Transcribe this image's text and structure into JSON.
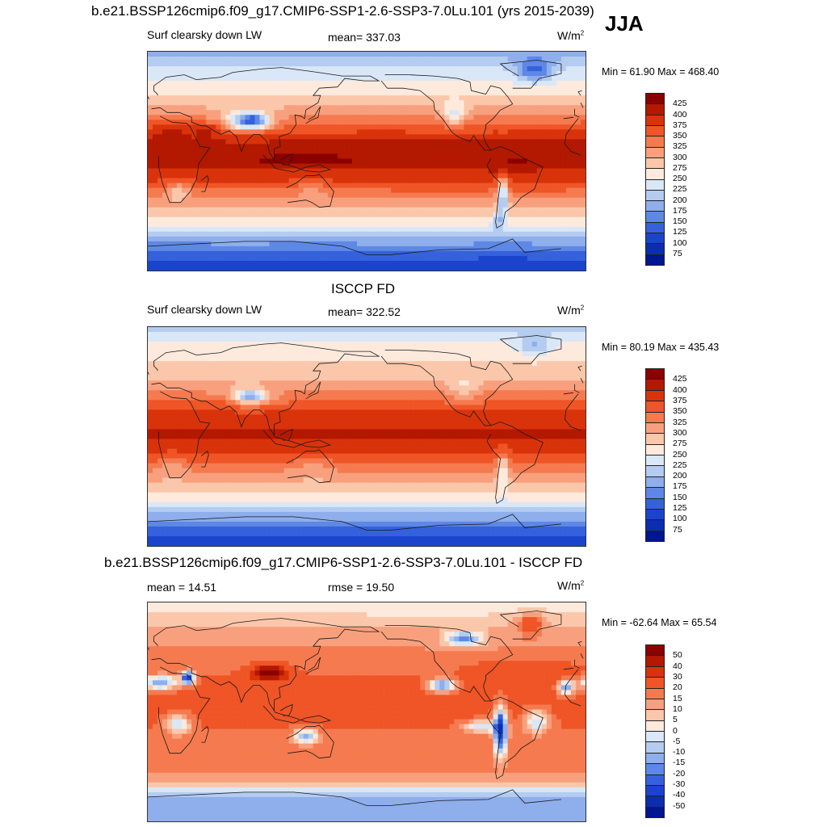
{
  "figure": {
    "season": "JJA",
    "panels": [
      {
        "id": "model",
        "title": "b.e21.BSSP126cmip6.f09_g17.CMIP6-SSP1-2.6-SSP3-7.0Lu.101 (yrs 2015-2039)",
        "left_label": "Surf clearsky down LW",
        "center_label": "mean= 337.03",
        "units_base": "W/m",
        "units_exp": "2",
        "minmax": "Min =  61.90 Max = 468.40",
        "colorbar": {
          "colors": [
            "#8b0000",
            "#b31800",
            "#d9330b",
            "#ef5526",
            "#f57a4f",
            "#f8a07d",
            "#fbc7aa",
            "#feeadd",
            "#d9e7f7",
            "#b4ccf0",
            "#8eaeec",
            "#5d88e6",
            "#3561dc",
            "#1a44cc",
            "#0b2db0",
            "#001590"
          ],
          "labels": [
            "425",
            "400",
            "375",
            "350",
            "325",
            "300",
            "275",
            "250",
            "225",
            "200",
            "175",
            "150",
            "125",
            "100",
            "75"
          ]
        },
        "field": {
          "lat_profile": [
            [
              90,
              185
            ],
            [
              75,
              230
            ],
            [
              60,
              265
            ],
            [
              45,
              300
            ],
            [
              30,
              355
            ],
            [
              15,
              405
            ],
            [
              0,
              420
            ],
            [
              -15,
              380
            ],
            [
              -30,
              330
            ],
            [
              -45,
              280
            ],
            [
              -55,
              240
            ],
            [
              -65,
              190
            ],
            [
              -75,
              140
            ],
            [
              -90,
              95
            ]
          ],
          "anomalies": [
            {
              "lon": 85,
              "lat": 33,
              "rx": 14,
              "ry": 6,
              "dv": -170
            },
            {
              "lon": 80,
              "lat": 33,
              "rx": 24,
              "ry": 10,
              "dv": -60
            },
            {
              "lon": -42,
              "lat": 74,
              "rx": 14,
              "ry": 10,
              "dv": -90
            },
            {
              "lon": -68,
              "lat": -28,
              "rx": 4,
              "ry": 16,
              "dv": -140
            },
            {
              "lon": -72,
              "lat": -48,
              "rx": 4,
              "ry": 7,
              "dv": -60
            },
            {
              "lon": -108,
              "lat": 38,
              "rx": 10,
              "ry": 10,
              "dv": -80
            },
            {
              "lon": 18,
              "lat": 24,
              "rx": 18,
              "ry": 7,
              "dv": 30
            },
            {
              "lon": 50,
              "lat": 26,
              "rx": 12,
              "ry": 6,
              "dv": 40
            },
            {
              "lon": 25,
              "lat": -25,
              "rx": 10,
              "ry": 8,
              "dv": -60
            },
            {
              "lon": 135,
              "lat": -25,
              "rx": 14,
              "ry": 8,
              "dv": -30
            },
            {
              "lon": -60,
              "lat": -5,
              "rx": 14,
              "ry": 10,
              "dv": 15
            },
            {
              "lon": 130,
              "lat": 2,
              "rx": 40,
              "ry": 6,
              "dv": 15
            }
          ]
        }
      },
      {
        "id": "obs",
        "title": "ISCCP FD",
        "left_label": "Surf clearsky down LW",
        "center_label": "mean= 322.52",
        "units_base": "W/m",
        "units_exp": "2",
        "minmax": "Min =  80.19 Max = 435.43",
        "colorbar": {
          "colors": [
            "#8b0000",
            "#b31800",
            "#d9330b",
            "#ef5526",
            "#f57a4f",
            "#f8a07d",
            "#fbc7aa",
            "#feeadd",
            "#d9e7f7",
            "#b4ccf0",
            "#8eaeec",
            "#5d88e6",
            "#3561dc",
            "#1a44cc",
            "#0b2db0",
            "#001590"
          ],
          "labels": [
            "425",
            "400",
            "375",
            "350",
            "325",
            "300",
            "275",
            "250",
            "225",
            "200",
            "175",
            "150",
            "125",
            "100",
            "75"
          ]
        },
        "field": {
          "lat_profile": [
            [
              90,
              215
            ],
            [
              75,
              255
            ],
            [
              60,
              280
            ],
            [
              45,
              305
            ],
            [
              30,
              345
            ],
            [
              15,
              395
            ],
            [
              0,
              405
            ],
            [
              -15,
              370
            ],
            [
              -30,
              320
            ],
            [
              -45,
              275
            ],
            [
              -55,
              240
            ],
            [
              -65,
              195
            ],
            [
              -75,
              145
            ],
            [
              -90,
              110
            ]
          ],
          "anomalies": [
            {
              "lon": 85,
              "lat": 33,
              "rx": 12,
              "ry": 5,
              "dv": -120
            },
            {
              "lon": 80,
              "lat": 33,
              "rx": 22,
              "ry": 9,
              "dv": -40
            },
            {
              "lon": -42,
              "lat": 74,
              "rx": 13,
              "ry": 9,
              "dv": -60
            },
            {
              "lon": -68,
              "lat": -25,
              "rx": 4,
              "ry": 14,
              "dv": -80
            },
            {
              "lon": -100,
              "lat": 40,
              "rx": 12,
              "ry": 10,
              "dv": -40
            },
            {
              "lon": 60,
              "lat": 28,
              "rx": 10,
              "ry": 6,
              "dv": 25
            },
            {
              "lon": 20,
              "lat": -25,
              "rx": 10,
              "ry": 8,
              "dv": -30
            },
            {
              "lon": 135,
              "lat": -25,
              "rx": 14,
              "ry": 8,
              "dv": -20
            }
          ]
        }
      },
      {
        "id": "diff",
        "title": "b.e21.BSSP126cmip6.f09_g17.CMIP6-SSP1-2.6-SSP3-7.0Lu.101 - ISCCP FD",
        "left_label": "mean =  14.51",
        "center_label": "rmse =  19.50",
        "units_base": "W/m",
        "units_exp": "2",
        "minmax": "Min = -62.64 Max =  65.54",
        "colorbar": {
          "colors": [
            "#8b0000",
            "#b31800",
            "#d9330b",
            "#ef5526",
            "#f57a4f",
            "#f8a07d",
            "#fbc7aa",
            "#feeadd",
            "#d9e7f7",
            "#b4ccf0",
            "#8eaeec",
            "#5d88e6",
            "#3561dc",
            "#1a44cc",
            "#0b2db0",
            "#001590"
          ],
          "labels": [
            "50",
            "40",
            "30",
            "20",
            "15",
            "10",
            "5",
            "0",
            "-5",
            "-10",
            "-15",
            "-20",
            "-30",
            "-40",
            "-50"
          ]
        },
        "field": {
          "lat_profile": [
            [
              90,
              3
            ],
            [
              80,
              5
            ],
            [
              70,
              10
            ],
            [
              60,
              14
            ],
            [
              45,
              16
            ],
            [
              30,
              20
            ],
            [
              15,
              22
            ],
            [
              0,
              22
            ],
            [
              -15,
              20
            ],
            [
              -30,
              18
            ],
            [
              -45,
              17
            ],
            [
              -55,
              14
            ],
            [
              -62,
              2
            ],
            [
              -68,
              -8
            ],
            [
              -75,
              -12
            ],
            [
              -90,
              -15
            ]
          ],
          "anomalies": [
            {
              "lon": 10,
              "lat": 24,
              "rx": 14,
              "ry": 6,
              "dv": -35
            },
            {
              "lon": 33,
              "lat": 28,
              "rx": 5,
              "ry": 5,
              "dv": -60
            },
            {
              "lon": -16,
              "lat": 20,
              "rx": 6,
              "ry": 6,
              "dv": -35
            },
            {
              "lon": 100,
              "lat": 32,
              "rx": 15,
              "ry": 6,
              "dv": 40
            },
            {
              "lon": -118,
              "lat": 22,
              "rx": 10,
              "ry": 5,
              "dv": -40
            },
            {
              "lon": -100,
              "lat": 60,
              "rx": 15,
              "ry": 6,
              "dv": -30
            },
            {
              "lon": -70,
              "lat": -15,
              "rx": 5,
              "ry": 18,
              "dv": -60
            },
            {
              "lon": -40,
              "lat": -8,
              "rx": 10,
              "ry": 10,
              "dv": -25
            },
            {
              "lon": -85,
              "lat": -12,
              "rx": 14,
              "ry": 5,
              "dv": -25
            },
            {
              "lon": 25,
              "lat": -10,
              "rx": 10,
              "ry": 8,
              "dv": -25
            },
            {
              "lon": 130,
              "lat": -20,
              "rx": 10,
              "ry": 6,
              "dv": -30
            },
            {
              "lon": -45,
              "lat": 73,
              "rx": 10,
              "ry": 8,
              "dv": 20
            },
            {
              "lon": -50,
              "lat": 35,
              "rx": 40,
              "ry": 8,
              "dv": 10
            }
          ]
        }
      }
    ]
  },
  "chart_data": [
    {
      "type": "heatmap",
      "title": "b.e21.BSSP126cmip6.f09_g17.CMIP6-SSP1-2.6-SSP3-7.0Lu.101 (yrs 2015-2039)",
      "variable": "Surf clearsky down LW",
      "units": "W/m2",
      "mean": 337.03,
      "min": 61.9,
      "max": 468.4,
      "contour_levels": [
        75,
        100,
        125,
        150,
        175,
        200,
        225,
        250,
        275,
        300,
        325,
        350,
        375,
        400,
        425
      ],
      "xlim": [
        0,
        360
      ],
      "ylim": [
        -90,
        90
      ]
    },
    {
      "type": "heatmap",
      "title": "ISCCP FD",
      "variable": "Surf clearsky down LW",
      "units": "W/m2",
      "mean": 322.52,
      "min": 80.19,
      "max": 435.43,
      "contour_levels": [
        75,
        100,
        125,
        150,
        175,
        200,
        225,
        250,
        275,
        300,
        325,
        350,
        375,
        400,
        425
      ],
      "xlim": [
        0,
        360
      ],
      "ylim": [
        -90,
        90
      ]
    },
    {
      "type": "heatmap",
      "title": "b.e21.BSSP126cmip6.f09_g17.CMIP6-SSP1-2.6-SSP3-7.0Lu.101 - ISCCP FD",
      "units": "W/m2",
      "mean": 14.51,
      "rmse": 19.5,
      "min": -62.64,
      "max": 65.54,
      "contour_levels": [
        -50,
        -40,
        -30,
        -20,
        -15,
        -10,
        -5,
        0,
        5,
        10,
        15,
        20,
        30,
        40,
        50
      ],
      "xlim": [
        0,
        360
      ],
      "ylim": [
        -90,
        90
      ]
    }
  ]
}
